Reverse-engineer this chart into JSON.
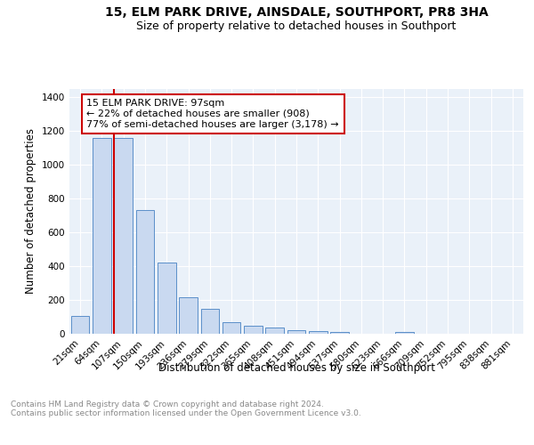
{
  "title": "15, ELM PARK DRIVE, AINSDALE, SOUTHPORT, PR8 3HA",
  "subtitle": "Size of property relative to detached houses in Southport",
  "xlabel": "Distribution of detached houses by size in Southport",
  "ylabel": "Number of detached properties",
  "categories": [
    "21sqm",
    "64sqm",
    "107sqm",
    "150sqm",
    "193sqm",
    "236sqm",
    "279sqm",
    "322sqm",
    "365sqm",
    "408sqm",
    "451sqm",
    "494sqm",
    "537sqm",
    "580sqm",
    "623sqm",
    "666sqm",
    "709sqm",
    "752sqm",
    "795sqm",
    "838sqm",
    "881sqm"
  ],
  "values": [
    108,
    1160,
    1160,
    735,
    420,
    215,
    150,
    70,
    50,
    35,
    22,
    18,
    12,
    0,
    0,
    13,
    0,
    0,
    0,
    0,
    0
  ],
  "bar_color": "#c9d9f0",
  "bar_edge_color": "#5b8fc9",
  "vline_x_index": 2,
  "vline_color": "#cc0000",
  "annotation_text": "15 ELM PARK DRIVE: 97sqm\n← 22% of detached houses are smaller (908)\n77% of semi-detached houses are larger (3,178) →",
  "annotation_box_color": "#ffffff",
  "annotation_box_edge_color": "#cc0000",
  "ylim": [
    0,
    1450
  ],
  "yticks": [
    0,
    200,
    400,
    600,
    800,
    1000,
    1200,
    1400
  ],
  "plot_bg_color": "#eaf1f9",
  "footer_text": "Contains HM Land Registry data © Crown copyright and database right 2024.\nContains public sector information licensed under the Open Government Licence v3.0.",
  "footer_color": "#888888",
  "title_fontsize": 10,
  "subtitle_fontsize": 9,
  "axis_label_fontsize": 8.5,
  "tick_fontsize": 7.5,
  "annotation_fontsize": 8,
  "footer_fontsize": 6.5
}
